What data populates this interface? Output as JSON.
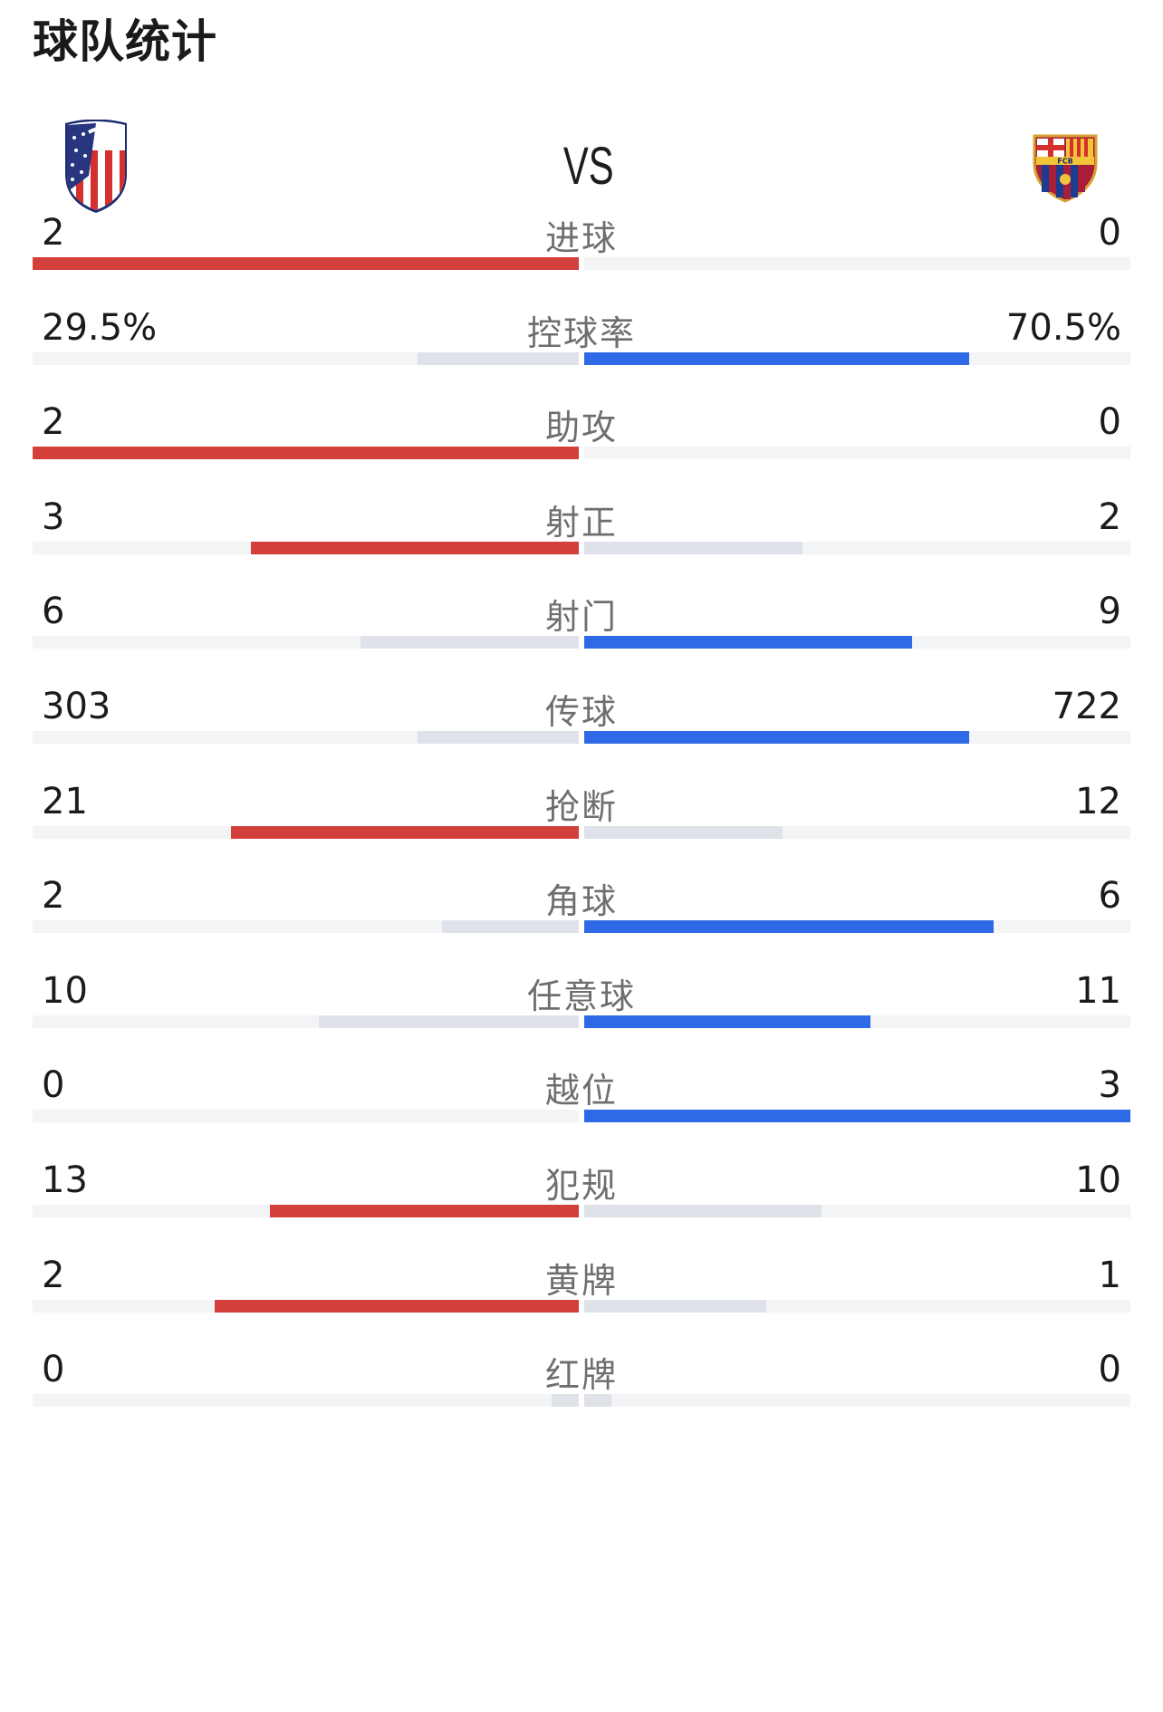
{
  "page": {
    "title": "球队统计",
    "vs_text": "VS"
  },
  "teams": {
    "home": {
      "crest_icon": "atletico-madrid-crest-icon",
      "color": "#d33f3a"
    },
    "away": {
      "crest_icon": "fc-barcelona-crest-icon",
      "crest_text": "FCB",
      "color": "#2f6ae6"
    }
  },
  "colors": {
    "home_leading": "#d33f3a",
    "away_leading": "#2f6ae6",
    "trailing": "#dfe2e8",
    "track": "#f3f4f6"
  },
  "stats": [
    {
      "label": "进球",
      "home": "2",
      "away": "0",
      "home_share": 1.0,
      "away_share": 0.0,
      "leader": "home"
    },
    {
      "label": "控球率",
      "home": "29.5%",
      "away": "70.5%",
      "home_share": 0.295,
      "away_share": 0.705,
      "leader": "away"
    },
    {
      "label": "助攻",
      "home": "2",
      "away": "0",
      "home_share": 1.0,
      "away_share": 0.0,
      "leader": "home"
    },
    {
      "label": "射正",
      "home": "3",
      "away": "2",
      "home_share": 0.6,
      "away_share": 0.4,
      "leader": "home"
    },
    {
      "label": "射门",
      "home": "6",
      "away": "9",
      "home_share": 0.4,
      "away_share": 0.6,
      "leader": "away"
    },
    {
      "label": "传球",
      "home": "303",
      "away": "722",
      "home_share": 0.296,
      "away_share": 0.704,
      "leader": "away"
    },
    {
      "label": "抢断",
      "home": "21",
      "away": "12",
      "home_share": 0.636,
      "away_share": 0.364,
      "leader": "home"
    },
    {
      "label": "角球",
      "home": "2",
      "away": "6",
      "home_share": 0.25,
      "away_share": 0.75,
      "leader": "away"
    },
    {
      "label": "任意球",
      "home": "10",
      "away": "11",
      "home_share": 0.476,
      "away_share": 0.524,
      "leader": "away"
    },
    {
      "label": "越位",
      "home": "0",
      "away": "3",
      "home_share": 0.0,
      "away_share": 1.0,
      "leader": "away"
    },
    {
      "label": "犯规",
      "home": "13",
      "away": "10",
      "home_share": 0.565,
      "away_share": 0.435,
      "leader": "home"
    },
    {
      "label": "黄牌",
      "home": "2",
      "away": "1",
      "home_share": 0.667,
      "away_share": 0.333,
      "leader": "home"
    },
    {
      "label": "红牌",
      "home": "0",
      "away": "0",
      "home_share": 0.05,
      "away_share": 0.05,
      "leader": "none"
    }
  ]
}
